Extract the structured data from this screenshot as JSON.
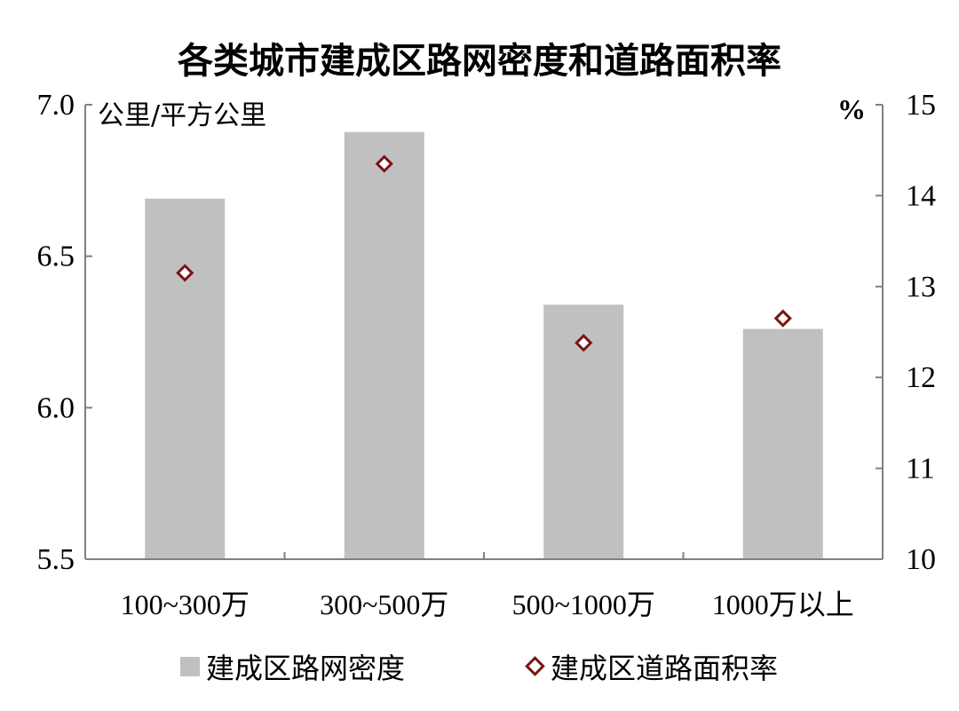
{
  "chart_data": {
    "type": "bar",
    "title": "各类城市建成区路网密度和道路面积率",
    "categories": [
      "100~300万",
      "300~500万",
      "500~1000万",
      "1000万以上"
    ],
    "series": [
      {
        "name": "建成区路网密度",
        "type": "bar",
        "axis": "left",
        "color": "#c0c0c0",
        "values": [
          6.69,
          6.91,
          6.34,
          6.26
        ]
      },
      {
        "name": "建成区道路面积率",
        "type": "scatter",
        "axis": "right",
        "marker": "diamond",
        "color": "#7b1414",
        "values": [
          13.15,
          14.35,
          12.38,
          12.65
        ]
      }
    ],
    "y_left": {
      "unit_label": "公里/平方公里",
      "ylim": [
        5.5,
        7.0
      ],
      "ticks": [
        "7.0",
        "6.5",
        "6.0",
        "5.5"
      ]
    },
    "y_right": {
      "unit_label": "%",
      "ylim": [
        10,
        15
      ],
      "ticks": [
        "15",
        "14",
        "13",
        "12",
        "11",
        "10"
      ]
    },
    "grid": false,
    "legend_position": "bottom"
  }
}
